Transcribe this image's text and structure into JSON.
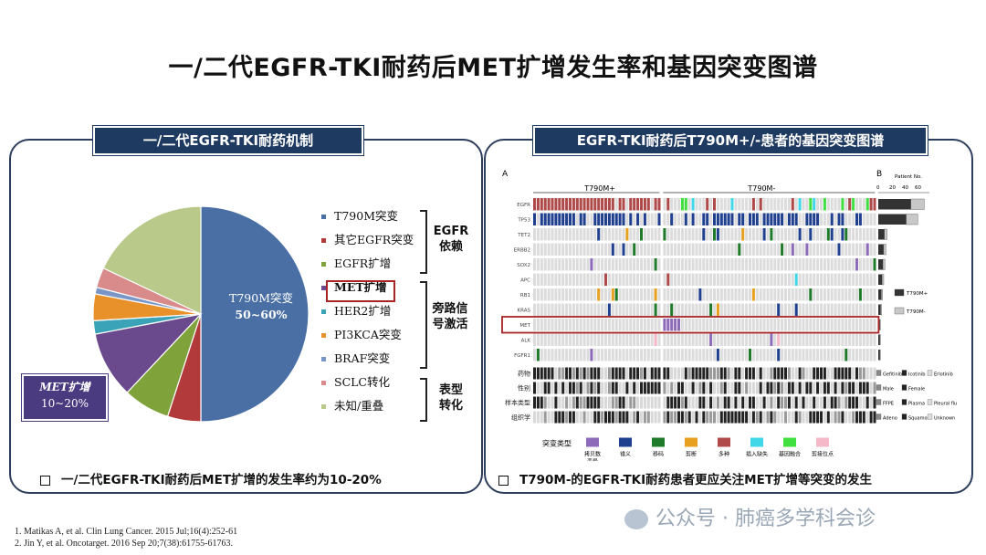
{
  "title": "一/二代EGFR-TKI耐药后MET扩增发生率和基因突变图谱",
  "left_panel": {
    "header": "一/二代EGFR-TKI耐药机制",
    "pie_labels": {
      "t790m_name": "T790M突变",
      "t790m_value": "50~60%",
      "met_name": "MET扩增",
      "met_value": "10~20%"
    },
    "legend": [
      {
        "label": "T790M突变",
        "color": "#4a6fa5"
      },
      {
        "label": "其它EGFR突变",
        "color": "#b23a3a"
      },
      {
        "label": "EGFR扩增",
        "color": "#7fa33a"
      },
      {
        "label": "MET扩增",
        "color": "#6a4a8c"
      },
      {
        "label": "HER2扩增",
        "color": "#3aa3b8"
      },
      {
        "label": "PI3KCA突变",
        "color": "#e8902a"
      },
      {
        "label": "BRAF突变",
        "color": "#7a96c8"
      },
      {
        "label": "SCLC转化",
        "color": "#d98a8a"
      },
      {
        "label": "未知/重叠",
        "color": "#b8c98a"
      }
    ],
    "groups": [
      "EGFR\n依赖",
      "旁路信\n号激活",
      "表型\n转化"
    ],
    "note": "一/二代EGFR-TKI耐药后MET扩增的发生率约为10-20%"
  },
  "right_panel": {
    "header": "EGFR-TKI耐药后T790M+/-患者的基因突变图谱",
    "label_a": "A",
    "label_b": "B",
    "col_t790m_pos": "T790M+",
    "col_t790m_neg": "T790M-",
    "patient_no": "Patient No.",
    "genes": [
      "EGFR",
      "TP53",
      "TET2",
      "ERBB2",
      "SOX2",
      "APC",
      "RB1",
      "KRAS",
      "MET",
      "ALK",
      "FGFR1"
    ],
    "clinical_rows": [
      "药物",
      "性别",
      "样本类型",
      "组织学"
    ],
    "bar_axis_ticks": [
      "0",
      "20",
      "40",
      "60"
    ],
    "bar_legend": [
      "T790M+",
      "T790M-"
    ],
    "clin_legends": [
      [
        "Gefitinib",
        "Icotinib",
        "Erlotinib"
      ],
      [
        "Male",
        "Female"
      ],
      [
        "FFPE",
        "Plasma",
        "Pleural fluid"
      ],
      [
        "Adeno",
        "Squamous",
        "Unknown"
      ]
    ],
    "mutation_legend_title": "突变类型",
    "mutation_types": [
      {
        "label": "拷贝数\n变异",
        "color": "#8e6bb8"
      },
      {
        "label": "错义",
        "color": "#1f3f8f"
      },
      {
        "label": "移码",
        "color": "#1f7a2a"
      },
      {
        "label": "剪断",
        "color": "#e8a020"
      },
      {
        "label": "多种",
        "color": "#b04a4a"
      },
      {
        "label": "插入缺失",
        "color": "#40d8e8"
      },
      {
        "label": "基因融合",
        "color": "#40e040"
      },
      {
        "label": "剪接位点",
        "color": "#f4b8c8"
      }
    ],
    "note": "T790M-的EGFR-TKI耐药患者更应关注MET扩增等突变的发生"
  },
  "chart_data": {
    "type": "pie",
    "title": "",
    "categories": [
      "T790M突变",
      "其它EGFR突变",
      "EGFR扩增",
      "MET扩增",
      "HER2扩增",
      "PI3KCA突变",
      "BRAF突变",
      "SCLC转化",
      "未知/重叠"
    ],
    "values": [
      50,
      5,
      7,
      10,
      2,
      4,
      1,
      3,
      18
    ],
    "colors": [
      "#4a6fa5",
      "#b23a3a",
      "#7fa33a",
      "#6a4a8c",
      "#3aa3b8",
      "#e8902a",
      "#7a96c8",
      "#d98a8a",
      "#b8c98a"
    ]
  },
  "watermark": "公众号 · 肺癌多学科会诊",
  "references": [
    "1. Matikas A, et al. Clin Lung Cancer. 2015 Jul;16(4):252-61",
    "2. Jin Y, et al. Oncotarget. 2016 Sep 20;7(38):61755-61763."
  ]
}
